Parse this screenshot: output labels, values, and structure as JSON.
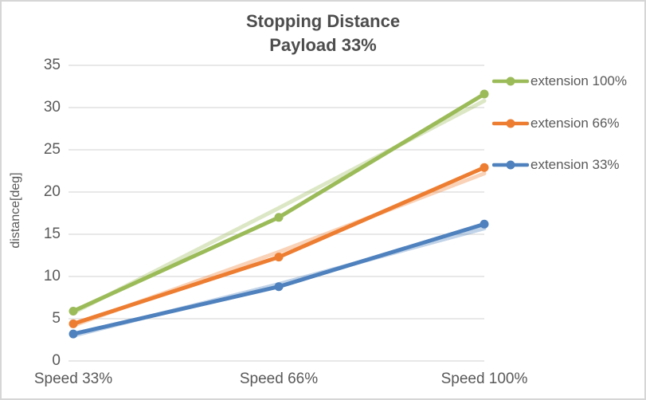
{
  "chart_data": {
    "type": "line",
    "title": "Stopping Distance",
    "subtitle": "Payload 33%",
    "xlabel": "",
    "ylabel": "distance[deg]",
    "categories": [
      "Speed 33%",
      "Speed 66%",
      "Speed 100%"
    ],
    "series": [
      {
        "name": "extension 100%",
        "color": "#9BBB59",
        "values": [
          5.9,
          17.0,
          31.6
        ],
        "echo_values": [
          5.7,
          18.1,
          30.8
        ]
      },
      {
        "name": "extension 66%",
        "color": "#ED7D31",
        "values": [
          4.4,
          12.3,
          22.9
        ],
        "echo_values": [
          4.2,
          12.9,
          22.2
        ]
      },
      {
        "name": "extension 33%",
        "color": "#4E81BD",
        "values": [
          3.2,
          8.8,
          16.2
        ],
        "echo_values": [
          3.0,
          9.1,
          15.7
        ]
      }
    ],
    "y_ticks": [
      0,
      5,
      10,
      15,
      20,
      25,
      30,
      35
    ],
    "ylim": [
      0,
      35
    ],
    "grid": "horizontal",
    "legend_position": "right",
    "marker": "circle",
    "line_echo_opacity": 0.35,
    "gridline_color": "#D9D9D9",
    "text_color": "#595959",
    "title_color": "#4d4d4d",
    "frame_border_color": "#D6D6D6",
    "background_color": "#FFFFFF"
  }
}
